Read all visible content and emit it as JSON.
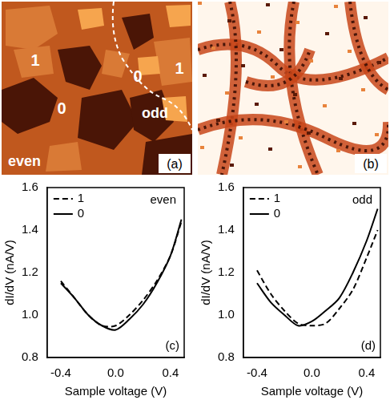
{
  "images": [
    {
      "panel": "(a)",
      "labels": [
        "1",
        "0",
        "0",
        "1",
        "odd",
        "even"
      ]
    },
    {
      "panel": "(b)"
    }
  ],
  "chart_data": [
    {
      "type": "line",
      "panel": "(c)",
      "annotations": [
        "even"
      ],
      "x_label": "Sample voltage (V)",
      "y_label": "dI/dV (nA/V)",
      "x": [
        -0.4,
        -0.3,
        -0.2,
        -0.1,
        0.0,
        0.1,
        0.2,
        0.3,
        0.4,
        0.48
      ],
      "series": [
        {
          "name": "1",
          "color": "#000000",
          "line_style": "dashed",
          "marker": "none",
          "values": [
            1.16,
            1.08,
            1.0,
            0.95,
            0.95,
            1.0,
            1.07,
            1.16,
            1.28,
            1.44
          ]
        },
        {
          "name": "0",
          "color": "#000000",
          "line_style": "solid",
          "marker": "none",
          "values": [
            1.15,
            1.08,
            1.0,
            0.95,
            0.93,
            0.98,
            1.05,
            1.15,
            1.28,
            1.45
          ]
        }
      ],
      "xlim": [
        -0.5,
        0.5
      ],
      "xticks": [
        -0.4,
        {
          "value": 0,
          "label": "0.0"
        },
        0.4
      ],
      "ylim": [
        0.8,
        1.6
      ],
      "yticks": [
        0.8,
        {
          "value": 1,
          "label": "1.0"
        },
        1.2,
        1.4,
        1.6
      ],
      "grid": false,
      "legend": "upper left"
    },
    {
      "type": "line",
      "panel": "(d)",
      "annotations": [
        "odd"
      ],
      "x_label": "Sample voltage (V)",
      "y_label": "dI/dV (nA/V)",
      "x": [
        -0.4,
        -0.3,
        -0.2,
        -0.1,
        0.0,
        0.1,
        0.2,
        0.3,
        0.4,
        0.48
      ],
      "series": [
        {
          "name": "1",
          "color": "#000000",
          "line_style": "dashed",
          "marker": "none",
          "values": [
            1.21,
            1.1,
            1.02,
            0.96,
            0.95,
            0.96,
            1.03,
            1.12,
            1.27,
            1.4
          ]
        },
        {
          "name": "0",
          "color": "#000000",
          "line_style": "solid",
          "marker": "none",
          "values": [
            1.15,
            1.06,
            1.0,
            0.95,
            0.97,
            1.02,
            1.08,
            1.2,
            1.35,
            1.5
          ]
        }
      ],
      "xlim": [
        -0.5,
        0.5
      ],
      "xticks": [
        -0.4,
        {
          "value": 0,
          "label": "0.0"
        },
        0.4
      ],
      "ylim": [
        0.8,
        1.6
      ],
      "yticks": [
        0.8,
        {
          "value": 1,
          "label": "1.0"
        },
        1.2,
        1.4,
        1.6
      ],
      "grid": false,
      "legend": "upper left"
    }
  ]
}
